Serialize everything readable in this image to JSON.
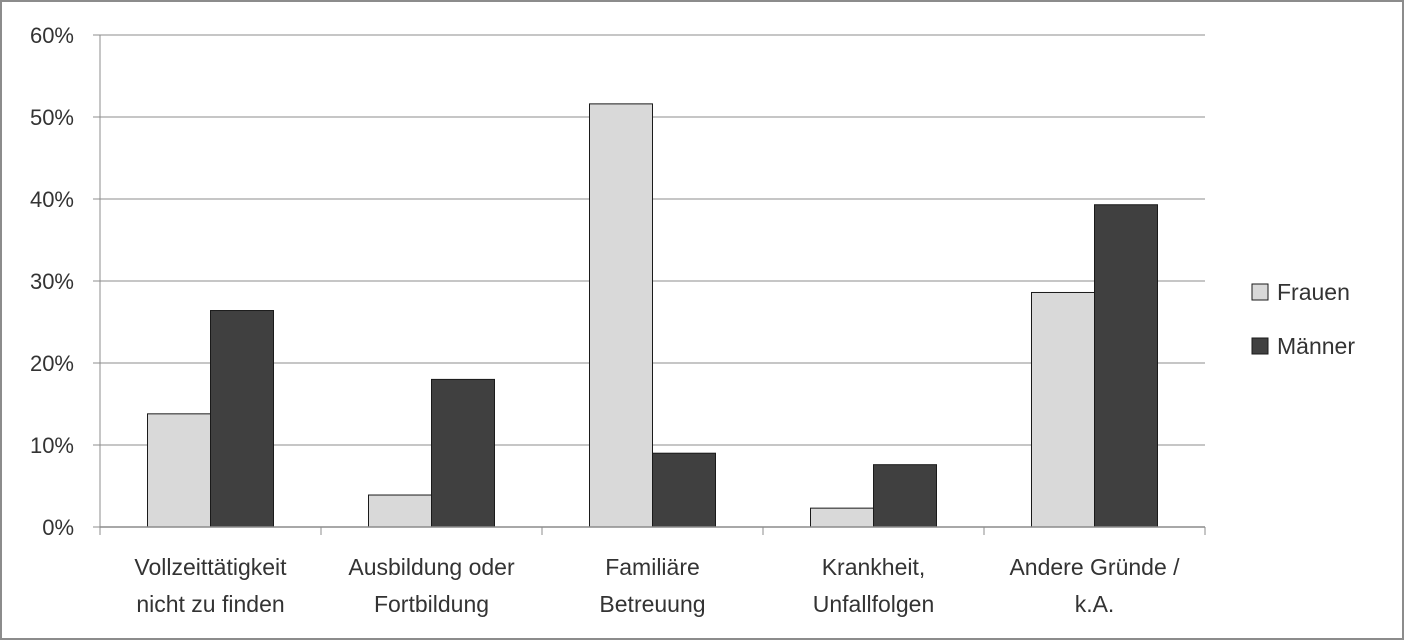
{
  "chart_data": {
    "type": "bar",
    "categories": [
      [
        "Vollzeittätigkeit",
        "nicht zu finden"
      ],
      [
        "Ausbildung oder",
        "Fortbildung"
      ],
      [
        "Familiäre",
        "Betreuung"
      ],
      [
        "Krankheit,",
        "Unfallfolgen"
      ],
      [
        "Andere Gründe /",
        "k.A."
      ]
    ],
    "series": [
      {
        "name": "Frauen",
        "color": "#d9d9d9",
        "values": [
          13.8,
          3.9,
          51.6,
          2.3,
          28.6
        ]
      },
      {
        "name": "Männer",
        "color": "#404040",
        "values": [
          26.4,
          18.0,
          9.0,
          7.6,
          39.3
        ]
      }
    ],
    "yticks": [
      "0%",
      "10%",
      "20%",
      "30%",
      "40%",
      "50%",
      "60%"
    ],
    "ylim": [
      0,
      60
    ],
    "grid": true,
    "legend_position": "right"
  }
}
